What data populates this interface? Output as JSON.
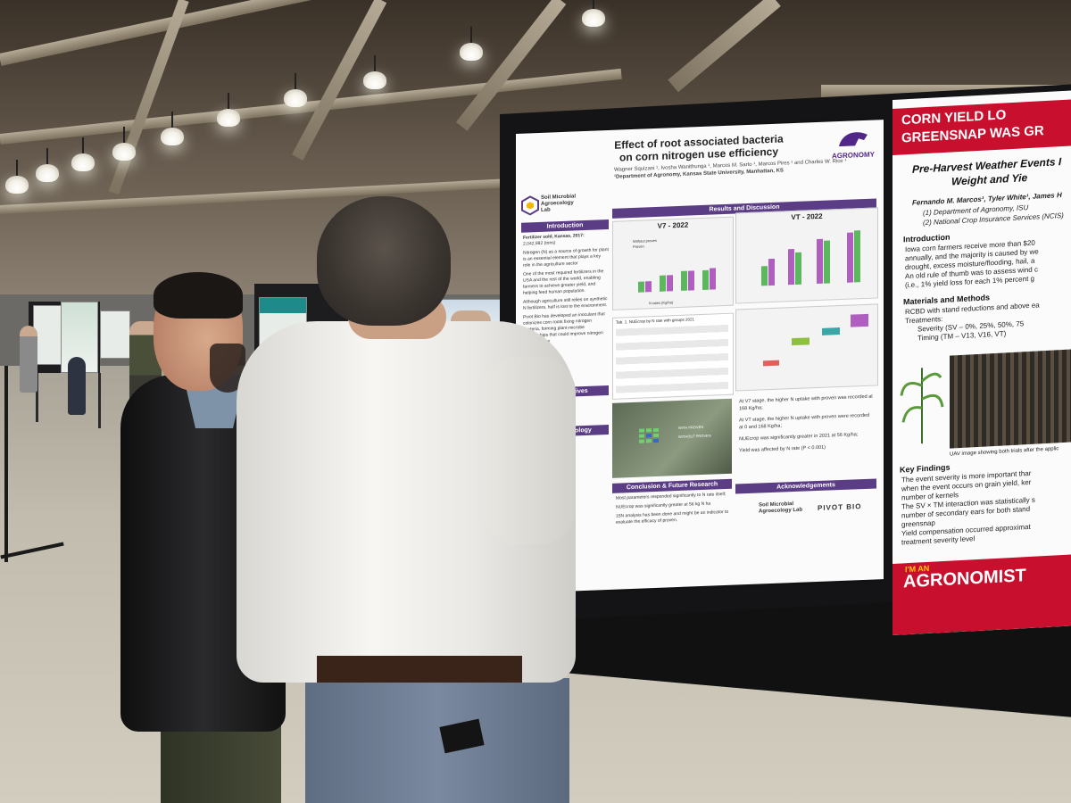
{
  "scene": {
    "description_colors": {
      "ceiling": "#5e5346",
      "floor": "#c2bcae",
      "board": "#141416",
      "poster2_accent": "#c8102e",
      "poster1_accent": "#5b3d86"
    }
  },
  "poster1": {
    "title_line1": "Effect of root associated bacteria",
    "title_line2": "on corn nitrogen use efficiency",
    "authors": "Wagner Squizani ¹, Ivosha Wanithunga ¹, Marcos M. Sarto ¹, Marcos Pires ¹ and Charles W. Rice ¹",
    "affiliation": "¹Department of Agronomy, Kansas State University, Manhattan, KS",
    "lab_logo": "Soil Microbial Agroecology Lab",
    "dept_logo": "AGRONOMY",
    "sections": {
      "introduction": "Introduction",
      "results": "Results and Discussion",
      "objectives": "Objectives",
      "methodology": "Methodology",
      "conclusion": "Conclusion & Future Research",
      "acknowledgements": "Acknowledgements"
    },
    "intro_text": [
      "Fertilizer sold, Kansas, 2017:",
      "2,042,982 (tons)",
      "Nitrogen (N) as a source of growth for plant is an essential element that plays a key role in the agriculture sector",
      "One of the most required fertilizers in the USA and the rest of the world, enabling farmers to achieve greater yield, and helping feed human population.",
      "Although agriculture still relies on synthetic N fertilizers, half is lost to the environment.",
      "Pivot Bio has developed an inoculant that colonizes corn roots fixing nitrogen bacteria, forming plant-microbe relationships that could improve nitrogen use efficiency"
    ],
    "fig1_title": "V7 - 2022",
    "fig2_title": "VT - 2022",
    "legend_without": "Without proven",
    "legend_proven": "Proven",
    "xlabel": "N rates (Kg/ha)",
    "table_title": "Tab. 1. NUEcrop by N rate with groups 2021",
    "results_bullets": [
      "At V7 stage, the higher N uptake with proven was recorded at 168 Kg/ha;",
      "At VT stage, the higher N uptake with proven were recorded at 0 and 168 Kg/ha;",
      "NUEcrop was significantly greater in 2021 at 56 Kg/ha;",
      "Yield was affected by N rate (P < 0.001)"
    ],
    "photo_labels": [
      "WITH PROVEN",
      "WITHOUT PROVEN"
    ],
    "conclusion_bullets": [
      "Most parameters responded significantly to N rate itself;",
      "NUEcrop was significantly greater at 56 kg N ha",
      "15N analysis has been done and might be an indicator to evaluate the efficacy of proven."
    ],
    "sponsor": "PIVOT BIO"
  },
  "poster2": {
    "banner_line1": "CORN YIELD LO",
    "banner_line2": "GREENSNAP WAS GR",
    "heading_line1": "Pre-Harvest Weather Events I",
    "heading_line2": "Weight and Yie",
    "authors": "Fernando M. Marcos¹, Tyler White¹, James H",
    "affil1": "(1) Department of Agronomy, ISU",
    "affil2": "(2) National Crop Insurance Services (NCIS)",
    "intro_head": "Introduction",
    "intro_bullets": [
      "Iowa corn farmers receive more than $20",
      "annually, and the majority is caused by we",
      "drought, excess moisture/flooding, hail, a",
      "An old rule of thumb was to assess wind c",
      "(i.e., 1% yield loss for each 1% percent g"
    ],
    "methods_head": "Materials and Methods",
    "methods_bullets": [
      "RCBD with stand reductions and above ea",
      "Treatments:",
      "Severity (SV – 0%, 25%, 50%, 75",
      "Timing (TM – V13, V16, VT)"
    ],
    "findings_head": "Key Findings",
    "findings_bullets": [
      "The event severity is more important thar",
      "when the event occurs on grain yield, ker",
      "number of kernels",
      "The SV × TM interaction was statistically s",
      "number of secondary ears for both stand",
      "greensnap",
      "Yield compensation occurred approximat",
      "treatment severity level"
    ],
    "uav_caption": "UAV image showing both trials after the applic",
    "footer_small": "I'M AN",
    "footer": "AGRONOMIST"
  }
}
